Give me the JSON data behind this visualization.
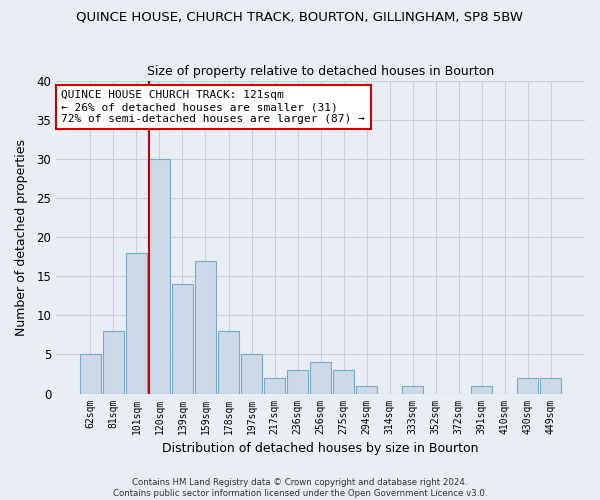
{
  "title": "QUINCE HOUSE, CHURCH TRACK, BOURTON, GILLINGHAM, SP8 5BW",
  "subtitle": "Size of property relative to detached houses in Bourton",
  "xlabel": "Distribution of detached houses by size in Bourton",
  "ylabel": "Number of detached properties",
  "bar_color": "#ccd9e8",
  "bar_edge_color": "#7aaac8",
  "categories": [
    "62sqm",
    "81sqm",
    "101sqm",
    "120sqm",
    "139sqm",
    "159sqm",
    "178sqm",
    "197sqm",
    "217sqm",
    "236sqm",
    "256sqm",
    "275sqm",
    "294sqm",
    "314sqm",
    "333sqm",
    "352sqm",
    "372sqm",
    "391sqm",
    "410sqm",
    "430sqm",
    "449sqm"
  ],
  "values": [
    5,
    8,
    18,
    30,
    14,
    17,
    8,
    5,
    2,
    3,
    4,
    3,
    1,
    0,
    1,
    0,
    0,
    1,
    0,
    2,
    2
  ],
  "ylim": [
    0,
    40
  ],
  "yticks": [
    0,
    5,
    10,
    15,
    20,
    25,
    30,
    35,
    40
  ],
  "vline_index": 3,
  "vline_color": "#cc0000",
  "annotation_title": "QUINCE HOUSE CHURCH TRACK: 121sqm",
  "annotation_line1": "← 26% of detached houses are smaller (31)",
  "annotation_line2": "72% of semi-detached houses are larger (87) →",
  "annotation_box_color": "#ffffff",
  "annotation_box_edge": "#cc0000",
  "footer_line1": "Contains HM Land Registry data © Crown copyright and database right 2024.",
  "footer_line2": "Contains public sector information licensed under the Open Government Licence v3.0.",
  "background_color": "#e8eef4",
  "plot_background": "#e8eef4",
  "grid_color": "#c8d0d8"
}
